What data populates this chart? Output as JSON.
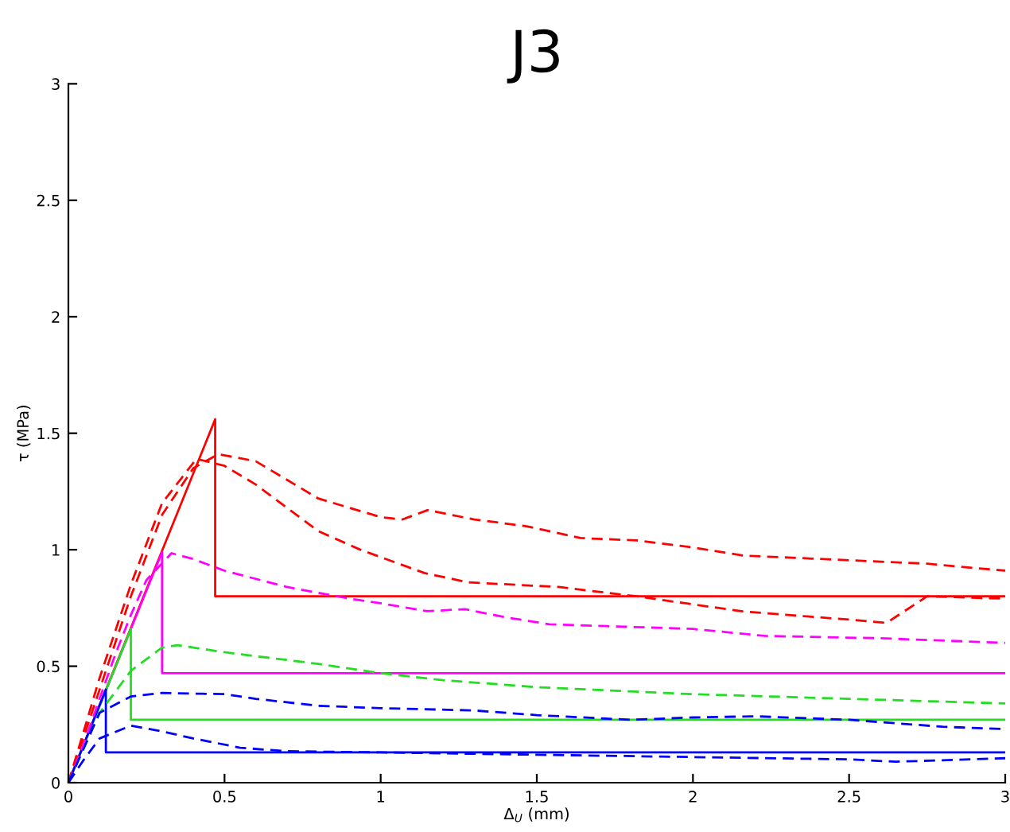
{
  "chart_data": {
    "type": "line",
    "title": "J3",
    "xlabel": "Δ$_{U}$ (mm)",
    "ylabel": "τ (MPa)",
    "xlim": [
      0,
      3
    ],
    "ylim": [
      0,
      3
    ],
    "xticks": [
      0,
      0.5,
      1,
      1.5,
      2,
      2.5,
      3
    ],
    "yticks": [
      0,
      0.5,
      1,
      1.5,
      2,
      2.5,
      3
    ],
    "grid": false,
    "marker": "none",
    "series": [
      {
        "color": "#ff0000",
        "line_style": "solid",
        "x": [
          0,
          0.47,
          0.47,
          3
        ],
        "values": [
          0,
          1.56,
          0.8,
          0.8
        ]
      },
      {
        "color": "#ff00ff",
        "line_style": "solid",
        "x": [
          0,
          0.3,
          0.3,
          3
        ],
        "values": [
          0,
          0.99,
          0.47,
          0.47
        ]
      },
      {
        "color": "#22dd22",
        "line_style": "solid",
        "x": [
          0,
          0.2,
          0.2,
          3
        ],
        "values": [
          0,
          0.66,
          0.27,
          0.27
        ]
      },
      {
        "color": "#0000ff",
        "line_style": "solid",
        "x": [
          0,
          0.12,
          0.12,
          3
        ],
        "values": [
          0,
          0.4,
          0.13,
          0.13
        ]
      },
      {
        "color": "#ff0000",
        "line_style": "dashed",
        "x": [
          0,
          0.1,
          0.2,
          0.3,
          0.4,
          0.48,
          0.6,
          0.7,
          0.8,
          0.9,
          1.0,
          1.07,
          1.15,
          1.3,
          1.47,
          1.64,
          1.82,
          2.0,
          2.16,
          2.5,
          2.75,
          3.0
        ],
        "values": [
          0,
          0.4,
          0.8,
          1.15,
          1.35,
          1.41,
          1.38,
          1.3,
          1.22,
          1.18,
          1.14,
          1.13,
          1.17,
          1.13,
          1.1,
          1.05,
          1.04,
          1.01,
          0.975,
          0.955,
          0.94,
          0.91
        ]
      },
      {
        "color": "#ff0000",
        "line_style": "dashed",
        "x": [
          0,
          0.1,
          0.2,
          0.3,
          0.41,
          0.5,
          0.6,
          0.7,
          0.8,
          0.935,
          1.14,
          1.28,
          1.57,
          1.82,
          2.16,
          2.5,
          2.62,
          2.75,
          3.0
        ],
        "values": [
          0,
          0.45,
          0.85,
          1.2,
          1.39,
          1.36,
          1.28,
          1.18,
          1.08,
          1.0,
          0.9,
          0.86,
          0.84,
          0.8,
          0.735,
          0.7,
          0.686,
          0.8,
          0.79
        ]
      },
      {
        "color": "#ff00ff",
        "line_style": "dashed",
        "x": [
          0,
          0.05,
          0.1,
          0.15,
          0.2,
          0.25,
          0.33,
          0.4,
          0.5,
          0.7,
          0.9,
          1.0,
          1.15,
          1.27,
          1.4,
          1.54,
          2.0,
          2.23,
          2.6,
          3.0
        ],
        "values": [
          0,
          0.17,
          0.36,
          0.55,
          0.72,
          0.87,
          0.985,
          0.96,
          0.91,
          0.84,
          0.79,
          0.77,
          0.736,
          0.745,
          0.71,
          0.68,
          0.66,
          0.63,
          0.62,
          0.6
        ]
      },
      {
        "color": "#22dd22",
        "line_style": "dashed",
        "x": [
          0,
          0.1,
          0.2,
          0.3,
          0.35,
          0.5,
          0.8,
          1.0,
          1.2,
          1.5,
          2.0,
          2.5,
          3.0
        ],
        "values": [
          0,
          0.3,
          0.48,
          0.58,
          0.59,
          0.56,
          0.51,
          0.47,
          0.44,
          0.41,
          0.38,
          0.36,
          0.34
        ]
      },
      {
        "color": "#0000ff",
        "line_style": "dashed",
        "x": [
          0,
          0.1,
          0.2,
          0.3,
          0.5,
          0.6,
          0.8,
          1.0,
          1.3,
          1.5,
          1.8,
          2.0,
          2.2,
          2.5,
          2.8,
          3.0
        ],
        "values": [
          0,
          0.3,
          0.37,
          0.385,
          0.38,
          0.36,
          0.33,
          0.32,
          0.31,
          0.29,
          0.27,
          0.28,
          0.285,
          0.27,
          0.24,
          0.23
        ]
      },
      {
        "color": "#0000ff",
        "line_style": "dashed",
        "x": [
          0,
          0.05,
          0.1,
          0.2,
          0.3,
          0.4,
          0.55,
          0.7,
          1.0,
          1.5,
          2.0,
          2.5,
          2.65,
          3.0
        ],
        "values": [
          0,
          0.1,
          0.19,
          0.245,
          0.22,
          0.19,
          0.15,
          0.135,
          0.13,
          0.12,
          0.11,
          0.1,
          0.09,
          0.105
        ]
      }
    ]
  }
}
